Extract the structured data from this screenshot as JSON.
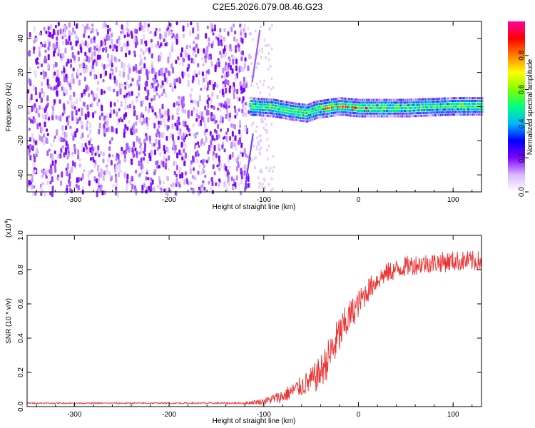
{
  "title": "C2E5.2026.079.08.46.G23",
  "chart_data": [
    {
      "type": "heatmap",
      "xlabel": "Height of straight line (km)",
      "ylabel": "Frequency (Hz)",
      "xlim": [
        -350,
        130
      ],
      "ylim": [
        -50,
        50
      ],
      "xticks": [
        -300,
        -200,
        -100,
        0,
        100
      ],
      "yticks": [
        -40,
        -20,
        0,
        20,
        40
      ],
      "colorbar": {
        "label": "Normalized spectral amplitude",
        "range": [
          0.0,
          1.0
        ],
        "ticks": [
          "0.0",
          "0.2",
          "0.4",
          "0.6",
          "0.8"
        ],
        "colormap": [
          "#ffffff",
          "#d9b8ff",
          "#7f00ff",
          "#0000ff",
          "#00b7ff",
          "#00ff7f",
          "#7fff00",
          "#ffff00",
          "#ff7f00",
          "#ff0000",
          "#ff00a0"
        ]
      },
      "description_series": {
        "noise_region_x": [
          -350,
          -115
        ],
        "line_region_x": [
          -115,
          130
        ],
        "line_center_freq": [
          {
            "x": -115,
            "y": 1
          },
          {
            "x": -90,
            "y": 0
          },
          {
            "x": -70,
            "y": -2
          },
          {
            "x": -55,
            "y": -3
          },
          {
            "x": -45,
            "y": -1
          },
          {
            "x": -20,
            "y": 1
          },
          {
            "x": 0,
            "y": 0
          },
          {
            "x": 50,
            "y": 0
          },
          {
            "x": 100,
            "y": 1
          },
          {
            "x": 130,
            "y": 1
          }
        ]
      }
    },
    {
      "type": "line",
      "xlabel": "Height of straight line (km)",
      "ylabel": "SNR (10 * v/v)",
      "scale_note": "(x10",
      "scale_exp": "4",
      "xlim": [
        -350,
        130
      ],
      "ylim": [
        0.0,
        1.0
      ],
      "xticks": [
        -300,
        -200,
        -100,
        0,
        100
      ],
      "yticks": [
        "0.0",
        "0.2",
        "0.4",
        "0.6",
        "0.8",
        "1.0"
      ],
      "color": "#ee3333",
      "series": [
        {
          "x": [
            -350,
            -300,
            -250,
            -200,
            -150,
            -120,
            -100,
            -80,
            -60,
            -50,
            -40,
            -30,
            -20,
            -10,
            0,
            10,
            20,
            30,
            40,
            50,
            60,
            80,
            100,
            120,
            130
          ],
          "values": [
            0.02,
            0.02,
            0.02,
            0.02,
            0.02,
            0.02,
            0.03,
            0.06,
            0.12,
            0.15,
            0.2,
            0.3,
            0.42,
            0.52,
            0.6,
            0.68,
            0.74,
            0.78,
            0.8,
            0.82,
            0.83,
            0.84,
            0.85,
            0.85,
            0.85
          ],
          "noise": [
            0.004,
            0.004,
            0.004,
            0.004,
            0.005,
            0.006,
            0.02,
            0.04,
            0.06,
            0.08,
            0.1,
            0.12,
            0.12,
            0.1,
            0.08,
            0.07,
            0.06,
            0.06,
            0.06,
            0.06,
            0.06,
            0.06,
            0.06,
            0.06,
            0.06
          ]
        }
      ]
    }
  ]
}
